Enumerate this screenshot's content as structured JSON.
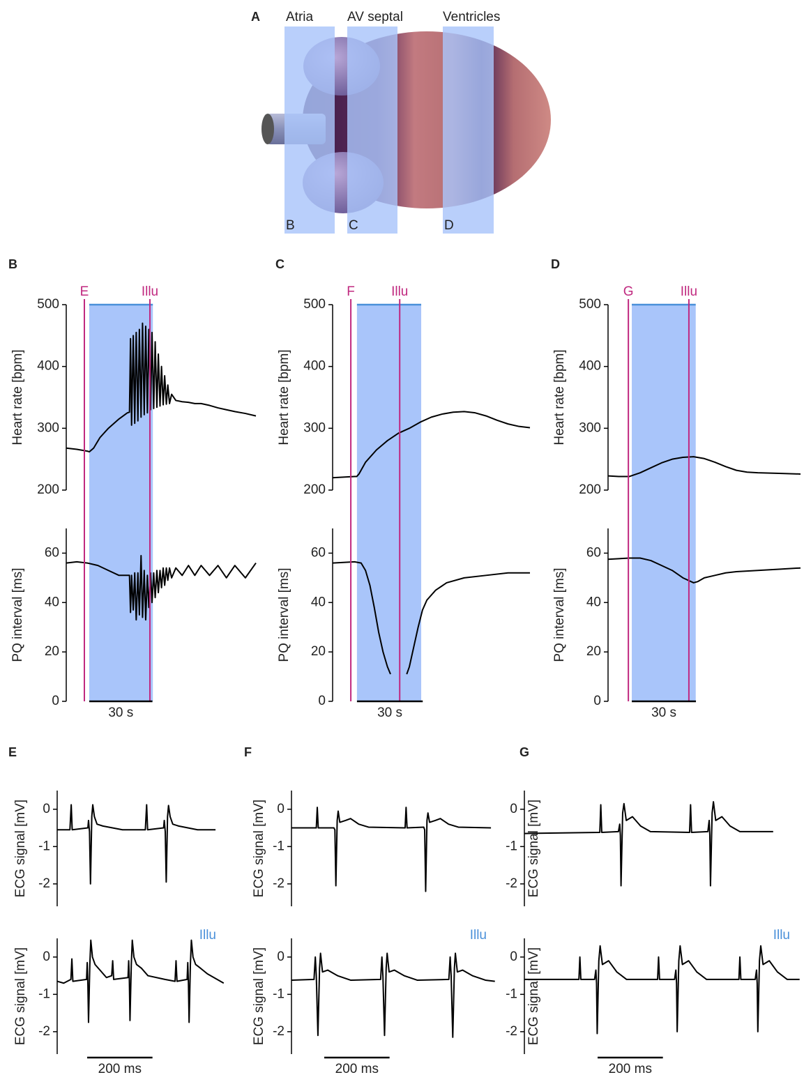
{
  "panel_a": {
    "label": "A",
    "regions": [
      {
        "title": "Atria",
        "tag": "B"
      },
      {
        "title": "AV septal",
        "tag": "C"
      },
      {
        "title": "Ventricles",
        "tag": "D"
      }
    ]
  },
  "chart_data": [
    {
      "type": "line",
      "panel": "B",
      "ylabel": "Heart rate [bpm]",
      "ylim": [
        200,
        500
      ],
      "yticks": [
        200,
        300,
        400,
        500
      ],
      "xlim": [
        0,
        90
      ],
      "color": "#000000",
      "span": [
        10.9,
        41.1
      ],
      "span_color": "#a9c5fa",
      "span_line_color": "#4a90d9",
      "marker_color": "#c0287f",
      "markers": [
        {
          "label": "E",
          "x": 8.6
        },
        {
          "label": "Illu",
          "x": 39.7
        }
      ],
      "x": [
        0,
        5,
        10,
        11,
        13,
        16,
        20,
        25,
        29,
        30,
        30.5,
        31,
        31.8,
        32.5,
        33.2,
        34,
        34.7,
        35.5,
        36.2,
        37,
        37.7,
        38.5,
        39.2,
        40,
        40.7,
        41.5,
        42.2,
        43,
        43.7,
        44.5,
        45.2,
        46,
        46.7,
        47.5,
        48.2,
        49,
        50,
        52,
        55,
        58,
        61,
        64,
        68,
        72,
        76,
        80,
        85,
        90
      ],
      "values": [
        268,
        266,
        263,
        262,
        268,
        285,
        300,
        315,
        325,
        326,
        445,
        305,
        450,
        308,
        455,
        312,
        460,
        318,
        470,
        322,
        465,
        325,
        460,
        330,
        455,
        332,
        440,
        334,
        420,
        336,
        400,
        338,
        385,
        339,
        370,
        340,
        355,
        345,
        343,
        342,
        340,
        340,
        337,
        333,
        330,
        327,
        324,
        320
      ]
    },
    {
      "type": "line",
      "ylabel": "PQ interval [ms]",
      "ylim": [
        0,
        70
      ],
      "yticks": [
        0,
        20,
        40,
        60
      ],
      "xlim": [
        0,
        90
      ],
      "color": "#000000",
      "span": [
        10.9,
        41.1
      ],
      "span_color": "#a9c5fa",
      "marker_color": "#c0287f",
      "markers": [
        {
          "x": 8.6
        },
        {
          "x": 39.7
        }
      ],
      "scalebar": {
        "value": 30,
        "label": "30 s"
      },
      "x": [
        0,
        5,
        10,
        15,
        20,
        25,
        30,
        30.5,
        31,
        31.8,
        32.5,
        33.2,
        34,
        34.7,
        35.5,
        36.2,
        37,
        37.7,
        38.5,
        39.2,
        40,
        40.7,
        41.5,
        42.2,
        43,
        43.7,
        44.5,
        45.2,
        46,
        46.7,
        47.5,
        48.2,
        49,
        50,
        52,
        55,
        58,
        61,
        64,
        68,
        72,
        76,
        80,
        85,
        90
      ],
      "values": [
        56,
        56.5,
        56,
        55,
        53,
        51,
        51,
        36,
        51,
        37,
        52,
        33,
        52,
        35,
        59,
        34,
        53,
        33,
        51,
        38,
        52,
        40,
        52,
        42,
        53,
        44,
        53,
        46,
        54,
        47,
        54,
        49,
        54,
        50,
        54,
        51,
        55,
        51,
        55,
        51,
        55,
        50,
        55,
        50,
        56
      ]
    },
    {
      "type": "line",
      "panel": "C",
      "ylabel": "Heart rate [bpm]",
      "ylim": [
        200,
        500
      ],
      "yticks": [
        200,
        300,
        400,
        500
      ],
      "xlim": [
        0,
        90
      ],
      "color": "#000000",
      "span": [
        11.1,
        40.4
      ],
      "span_color": "#a9c5fa",
      "span_line_color": "#4a90d9",
      "marker_color": "#c0287f",
      "markers": [
        {
          "label": "F",
          "x": 8.3
        },
        {
          "label": "Illu",
          "x": 30.6
        }
      ],
      "x": [
        0,
        5,
        10,
        11,
        12,
        15,
        20,
        25,
        30,
        35,
        40,
        45,
        50,
        55,
        60,
        65,
        70,
        75,
        80,
        85,
        90
      ],
      "values": [
        220,
        221,
        222,
        222,
        226,
        245,
        265,
        280,
        292,
        300,
        310,
        318,
        323,
        326,
        327,
        325,
        320,
        313,
        307,
        303,
        301
      ]
    },
    {
      "type": "line",
      "ylabel": "PQ interval [ms]",
      "ylim": [
        0,
        70
      ],
      "yticks": [
        0,
        20,
        40,
        60
      ],
      "xlim": [
        0,
        90
      ],
      "color": "#000000",
      "span": [
        11.1,
        40.4
      ],
      "span_color": "#a9c5fa",
      "marker_color": "#c0287f",
      "markers": [
        {
          "x": 8.3
        },
        {
          "x": 30.6
        }
      ],
      "scalebar": {
        "value": 30,
        "label": "30 s"
      },
      "x": [
        0,
        10,
        13,
        15,
        17,
        19,
        21,
        23,
        25,
        26.4,
        30,
        33.8,
        35,
        37,
        39,
        41,
        43,
        47,
        52,
        60,
        70,
        80,
        90
      ],
      "values": [
        56,
        56.5,
        56,
        53,
        47,
        38,
        28,
        20,
        14,
        11,
        null,
        11,
        14,
        22,
        30,
        37,
        41,
        45,
        48,
        50,
        51,
        52,
        52
      ]
    },
    {
      "type": "line",
      "panel": "D",
      "ylabel": "Heart rate [bpm]",
      "ylim": [
        200,
        500
      ],
      "yticks": [
        200,
        300,
        400,
        500
      ],
      "xlim": [
        0,
        90
      ],
      "color": "#000000",
      "span": [
        11.1,
        41.0
      ],
      "span_color": "#a9c5fa",
      "span_line_color": "#4a90d9",
      "marker_color": "#c0287f",
      "markers": [
        {
          "label": "G",
          "x": 9.5
        },
        {
          "label": "Illu",
          "x": 37.8
        }
      ],
      "x": [
        0,
        5,
        10,
        15,
        20,
        25,
        30,
        35,
        40,
        45,
        50,
        55,
        60,
        65,
        70,
        80,
        90
      ],
      "values": [
        223,
        222,
        222,
        228,
        236,
        244,
        250,
        253,
        254,
        251,
        245,
        238,
        232,
        229,
        228,
        227,
        226
      ]
    },
    {
      "type": "line",
      "ylabel": "PQ interval [ms]",
      "ylim": [
        0,
        70
      ],
      "yticks": [
        0,
        20,
        40,
        60
      ],
      "xlim": [
        0,
        90
      ],
      "color": "#000000",
      "span": [
        11.1,
        41.0
      ],
      "span_color": "#a9c5fa",
      "marker_color": "#c0287f",
      "markers": [
        {
          "x": 9.5
        },
        {
          "x": 37.8
        }
      ],
      "scalebar": {
        "value": 30,
        "label": "30 s"
      },
      "x": [
        0,
        10,
        15,
        20,
        25,
        30,
        35,
        40,
        42,
        45,
        50,
        55,
        60,
        70,
        80,
        90
      ],
      "values": [
        57.5,
        58,
        58,
        57,
        55,
        53,
        50,
        48,
        48.5,
        50,
        51,
        52,
        52.5,
        53,
        53.5,
        54
      ]
    },
    {
      "type": "line",
      "panel": "E",
      "ylabel": "ECG signal [mV]",
      "ylim": [
        -2.6,
        0.5
      ],
      "yticks": [
        0,
        -1,
        -2
      ],
      "xlim": [
        0,
        850
      ],
      "color": "#000000",
      "x": [
        0,
        39,
        43,
        46,
        94,
        96,
        99,
        102,
        106,
        109,
        114,
        122,
        140,
        200,
        270,
        274,
        277,
        326,
        328,
        331,
        334,
        338,
        341,
        346,
        354,
        372,
        430,
        485
      ],
      "values": [
        -0.55,
        -0.55,
        0.12,
        -0.55,
        -0.5,
        -0.3,
        -0.6,
        -2.0,
        -0.2,
        0.12,
        -0.2,
        -0.4,
        -0.45,
        -0.55,
        -0.55,
        0.12,
        -0.55,
        -0.5,
        -0.3,
        -0.6,
        -1.95,
        -0.2,
        0.1,
        -0.2,
        -0.4,
        -0.45,
        -0.55,
        -0.55
      ]
    },
    {
      "type": "line",
      "ylabel": "ECG signal [mV]",
      "ylim": [
        -2.6,
        0.5
      ],
      "yticks": [
        0,
        -1,
        -2
      ],
      "xlim": [
        0,
        850
      ],
      "color": "#000000",
      "annotation": "Illu",
      "annotation_color": "#4a90d9",
      "scalebar": {
        "value": 200,
        "label": "200 ms"
      },
      "x": [
        0,
        20,
        42,
        45,
        48,
        90,
        92,
        94,
        96,
        100,
        103,
        108,
        116,
        131,
        151,
        167,
        170,
        173,
        217,
        219,
        221,
        223,
        227,
        230,
        235,
        243,
        258,
        278,
        330,
        361,
        364,
        367,
        398,
        400,
        402,
        404,
        408,
        411,
        416,
        424,
        439,
        460,
        510
      ],
      "values": [
        -0.65,
        -0.7,
        -0.6,
        -0.05,
        -0.65,
        -0.6,
        -0.15,
        -0.7,
        -1.75,
        -0.2,
        0.45,
        0,
        -0.2,
        -0.35,
        -0.55,
        -0.5,
        -0.1,
        -0.6,
        -0.55,
        -0.1,
        -0.6,
        -1.7,
        -0.2,
        0.45,
        0,
        -0.2,
        -0.3,
        -0.5,
        -0.6,
        -0.65,
        -0.1,
        -0.65,
        -0.6,
        -0.15,
        -0.7,
        -1.75,
        -0.2,
        0.45,
        0,
        -0.2,
        -0.3,
        -0.45,
        -0.7
      ]
    },
    {
      "type": "line",
      "panel": "F",
      "ylabel": "ECG signal [mV]",
      "ylim": [
        -2.6,
        0.5
      ],
      "yticks": [
        0,
        -1,
        -2
      ],
      "xlim": [
        0,
        850
      ],
      "color": "#000000",
      "x": [
        0,
        76,
        79,
        82,
        130,
        133,
        136,
        140,
        143,
        148,
        166,
        181,
        206,
        236,
        348,
        351,
        354,
        405,
        408,
        411,
        415,
        418,
        423,
        441,
        456,
        481,
        511,
        611
      ],
      "values": [
        -0.5,
        -0.5,
        0.05,
        -0.5,
        -0.5,
        -0.55,
        -2.05,
        -0.3,
        -0.05,
        -0.35,
        -0.3,
        -0.25,
        -0.4,
        -0.48,
        -0.5,
        0.05,
        -0.5,
        -0.48,
        -0.55,
        -2.2,
        -0.3,
        -0.1,
        -0.35,
        -0.3,
        -0.25,
        -0.4,
        -0.48,
        -0.5
      ]
    },
    {
      "type": "line",
      "ylabel": "ECG signal [mV]",
      "ylim": [
        -2.6,
        0.5
      ],
      "yticks": [
        0,
        -1,
        -2
      ],
      "xlim": [
        0,
        850
      ],
      "color": "#000000",
      "annotation": "Illu",
      "annotation_color": "#4a90d9",
      "scalebar": {
        "value": 200,
        "label": "200 ms"
      },
      "x": [
        0,
        69,
        73,
        76,
        81,
        86,
        89,
        95,
        111,
        141,
        181,
        273,
        277,
        280,
        285,
        290,
        293,
        299,
        315,
        345,
        385,
        482,
        486,
        489,
        494,
        499,
        502,
        508,
        524,
        554,
        594,
        623
      ],
      "values": [
        -0.62,
        -0.6,
        0,
        -0.5,
        -2.1,
        -0.3,
        0.1,
        -0.4,
        -0.35,
        -0.5,
        -0.62,
        -0.6,
        0,
        -0.5,
        -2.1,
        -0.3,
        0.1,
        -0.4,
        -0.35,
        -0.5,
        -0.62,
        -0.6,
        0,
        -0.5,
        -2.15,
        -0.3,
        0.1,
        -0.4,
        -0.35,
        -0.5,
        -0.62,
        -0.65
      ]
    },
    {
      "type": "line",
      "panel": "G",
      "ylabel": "ECG signal [mV]",
      "ylim": [
        -2.6,
        0.5
      ],
      "yticks": [
        0,
        -1,
        -2
      ],
      "xlim": [
        0,
        850
      ],
      "color": "#000000",
      "x": [
        0,
        231,
        234,
        237,
        288,
        292,
        294,
        296,
        301,
        305,
        312,
        331,
        356,
        386,
        506,
        509,
        512,
        562,
        566,
        568,
        570,
        575,
        579,
        586,
        605,
        630,
        660,
        762
      ],
      "values": [
        -0.65,
        -0.62,
        0.12,
        -0.62,
        -0.6,
        -0.4,
        -0.7,
        -2.05,
        -0.1,
        0.15,
        -0.3,
        -0.2,
        -0.45,
        -0.6,
        -0.62,
        0.12,
        -0.62,
        -0.6,
        -0.3,
        -0.7,
        -2.05,
        -0.1,
        0.2,
        -0.3,
        -0.2,
        -0.45,
        -0.6,
        -0.6
      ]
    },
    {
      "type": "line",
      "ylabel": "ECG signal [mV]",
      "ylim": [
        -2.6,
        0.5
      ],
      "yticks": [
        0,
        -1,
        -2
      ],
      "xlim": [
        0,
        850
      ],
      "color": "#000000",
      "annotation": "Illu",
      "annotation_color": "#4a90d9",
      "scalebar": {
        "value": 200,
        "label": "200 ms"
      },
      "x": [
        0,
        167,
        170,
        173,
        215,
        219,
        221,
        223,
        228,
        232,
        239,
        258,
        283,
        313,
        408,
        411,
        414,
        460,
        464,
        466,
        468,
        473,
        477,
        484,
        503,
        528,
        558,
        657,
        660,
        663,
        707,
        711,
        713,
        715,
        720,
        724,
        731,
        750,
        775,
        805,
        843
      ],
      "values": [
        -0.6,
        -0.6,
        0,
        -0.6,
        -0.6,
        -0.35,
        -0.7,
        -2.05,
        -0.1,
        0.3,
        -0.2,
        -0.1,
        -0.4,
        -0.6,
        -0.6,
        0,
        -0.6,
        -0.6,
        -0.35,
        -0.7,
        -2.0,
        -0.1,
        0.3,
        -0.2,
        -0.1,
        -0.4,
        -0.6,
        -0.6,
        0,
        -0.6,
        -0.6,
        -0.35,
        -0.7,
        -2.0,
        -0.1,
        0.3,
        -0.2,
        -0.1,
        -0.4,
        -0.6,
        -0.6
      ]
    }
  ]
}
